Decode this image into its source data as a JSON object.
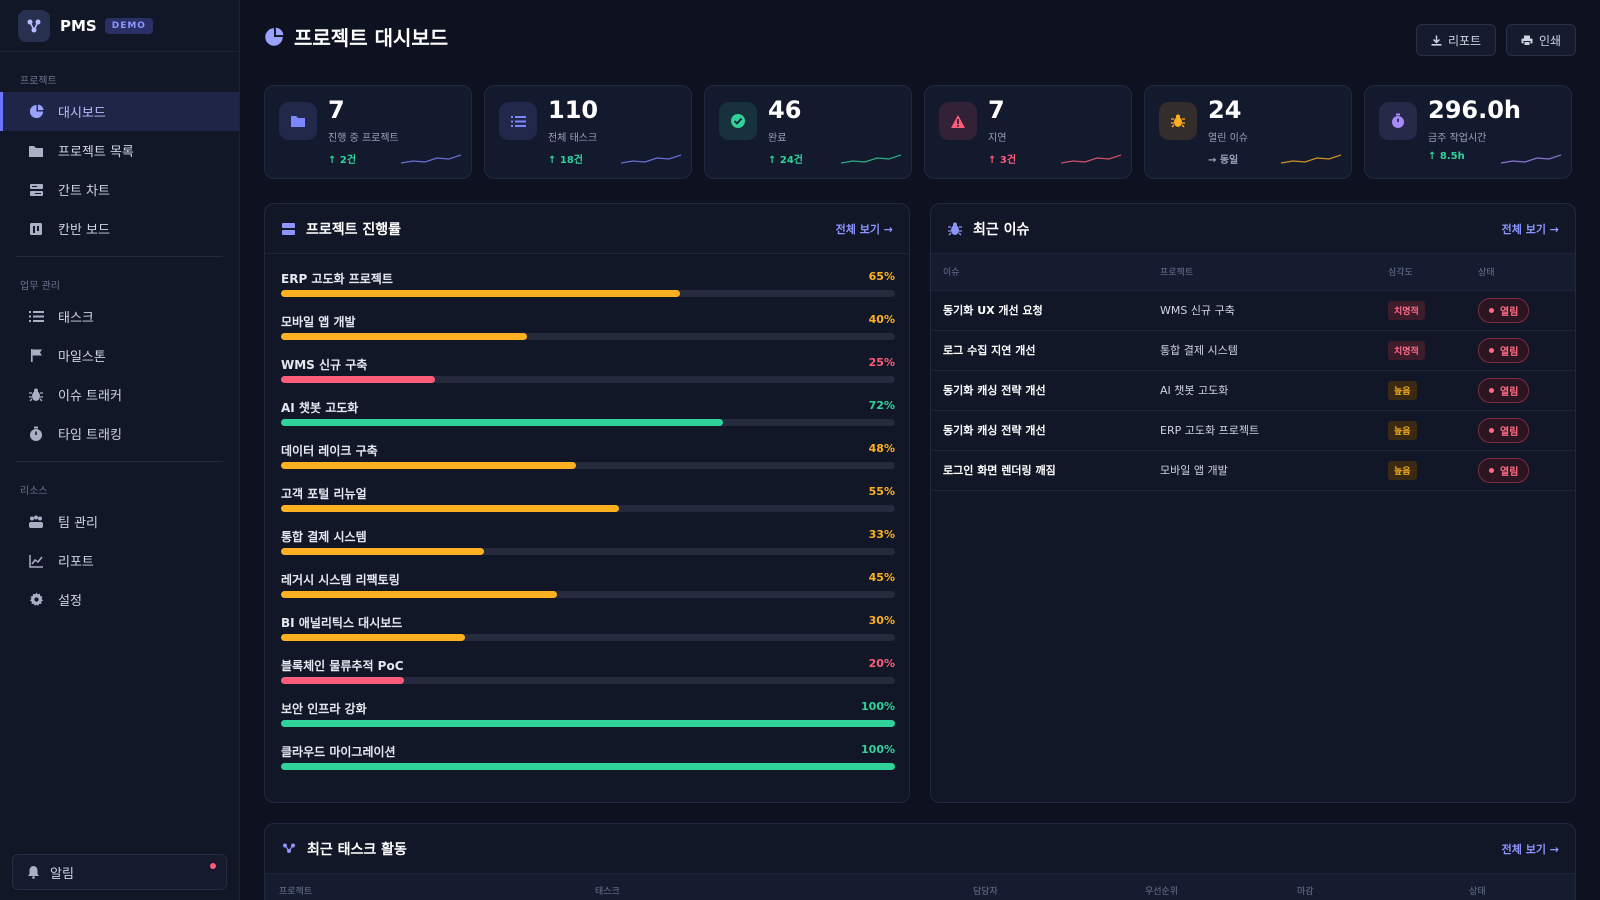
{
  "brand": {
    "name": "PMS",
    "badge": "DEMO"
  },
  "sidebar": {
    "sections": [
      {
        "label": "프로젝트",
        "items": [
          {
            "label": "대시보드",
            "icon": "pie-chart-icon",
            "active": true
          },
          {
            "label": "프로젝트 목록",
            "icon": "folder-icon"
          },
          {
            "label": "간트 차트",
            "icon": "gantt-icon"
          },
          {
            "label": "칸반 보드",
            "icon": "kanban-icon"
          }
        ]
      },
      {
        "label": "업무 관리",
        "items": [
          {
            "label": "태스크",
            "icon": "list-icon"
          },
          {
            "label": "마일스톤",
            "icon": "flag-icon"
          },
          {
            "label": "이슈 트래커",
            "icon": "bug-icon"
          },
          {
            "label": "타임 트래킹",
            "icon": "stopwatch-icon"
          }
        ]
      },
      {
        "label": "리소스",
        "items": [
          {
            "label": "팀 관리",
            "icon": "users-icon"
          },
          {
            "label": "리포트",
            "icon": "line-chart-icon"
          },
          {
            "label": "설정",
            "icon": "gear-icon"
          }
        ]
      }
    ],
    "notifications_label": "알림"
  },
  "header": {
    "title": "프로젝트 대시보드",
    "report_label": "리포트",
    "print_label": "인쇄"
  },
  "stats": [
    {
      "value": "7",
      "label": "진행 중 프로젝트",
      "delta": "↑ 2건",
      "color": "#7c86ff",
      "icon": "folder-icon"
    },
    {
      "value": "110",
      "label": "전체 태스크",
      "delta": "↑ 18건",
      "color": "#7c86ff",
      "icon": "list-icon"
    },
    {
      "value": "46",
      "label": "완료",
      "delta": "↑ 24건",
      "color": "#2fd39a",
      "icon": "check-circle-icon"
    },
    {
      "value": "7",
      "label": "지연",
      "delta": "↑ 3건",
      "color": "#ff5c7a",
      "icon": "warning-icon"
    },
    {
      "value": "24",
      "label": "열린 이슈",
      "delta": "→ 동일",
      "color": "#ffb020",
      "icon": "bug-icon"
    },
    {
      "value": "296.0h",
      "label": "금주 작업시간",
      "delta": "↑ 8.5h",
      "color": "#a78bfa",
      "icon": "stopwatch-icon"
    }
  ],
  "progress_panel": {
    "title": "프로젝트 진행률",
    "view_all": "전체 보기 →",
    "projects": [
      {
        "name": "ERP 고도화 프로젝트",
        "percent": 65,
        "label": "65%"
      },
      {
        "name": "모바일 앱 개발",
        "percent": 40,
        "label": "40%"
      },
      {
        "name": "WMS 신규 구축",
        "percent": 25,
        "label": "25%"
      },
      {
        "name": "AI 챗봇 고도화",
        "percent": 72,
        "label": "72%"
      },
      {
        "name": "데이터 레이크 구축",
        "percent": 48,
        "label": "48%"
      },
      {
        "name": "고객 포털 리뉴얼",
        "percent": 55,
        "label": "55%"
      },
      {
        "name": "통합 결제 시스템",
        "percent": 33,
        "label": "33%"
      },
      {
        "name": "레거시 시스템 리팩토링",
        "percent": 45,
        "label": "45%"
      },
      {
        "name": "BI 애널리틱스 대시보드",
        "percent": 30,
        "label": "30%"
      },
      {
        "name": "블록체인 물류추적 PoC",
        "percent": 20,
        "label": "20%"
      },
      {
        "name": "보안 인프라 강화",
        "percent": 100,
        "label": "100%"
      },
      {
        "name": "클라우드 마이그레이션",
        "percent": 100,
        "label": "100%"
      }
    ],
    "colors": {
      "low": "#ff5c7a",
      "mid": "#ffb020",
      "high": "#2fd39a"
    }
  },
  "issues_panel": {
    "title": "최근 이슈",
    "view_all": "전체 보기 →",
    "columns": [
      "이슈",
      "프로젝트",
      "심각도",
      "상태"
    ],
    "rows": [
      {
        "title": "동기화 UX 개선 요청",
        "project": "WMS 신규 구축",
        "severity": "치명적",
        "sev_class": "critical",
        "status": "열림"
      },
      {
        "title": "로그 수집 지연 개선",
        "project": "통합 결제 시스템",
        "severity": "치명적",
        "sev_class": "critical",
        "status": "열림"
      },
      {
        "title": "동기화 캐싱 전략 개선",
        "project": "AI 챗봇 고도화",
        "severity": "높음",
        "sev_class": "high",
        "status": "열림"
      },
      {
        "title": "동기화 캐싱 전략 개선",
        "project": "ERP 고도화 프로젝트",
        "severity": "높음",
        "sev_class": "high",
        "status": "열림"
      },
      {
        "title": "로그인 화면 렌더링 깨짐",
        "project": "모바일 앱 개발",
        "severity": "높음",
        "sev_class": "high",
        "status": "열림"
      }
    ]
  },
  "tasks_panel": {
    "title": "최근 태스크 활동",
    "view_all": "전체 보기 →",
    "columns": [
      "프로젝트",
      "태스크",
      "담당자",
      "우선순위",
      "마감",
      "상태"
    ]
  }
}
